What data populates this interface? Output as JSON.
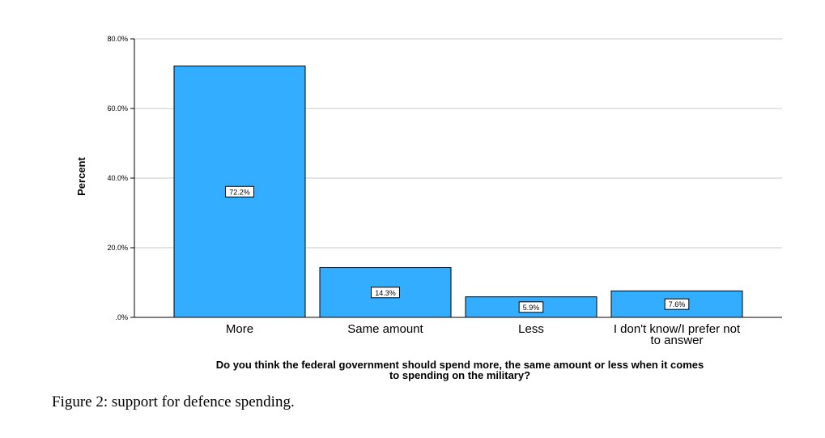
{
  "chart_data": {
    "type": "bar",
    "categories": [
      [
        "More"
      ],
      [
        "Same amount"
      ],
      [
        "Less"
      ],
      [
        "I don't know/I prefer not",
        "to answer"
      ]
    ],
    "values": [
      72.2,
      14.3,
      5.9,
      7.6
    ],
    "data_labels": [
      "72.2%",
      "14.3%",
      "5.9%",
      "7.6%"
    ],
    "ylabel": "Percent",
    "xlabel_lines": [
      "Do you think the federal government should spend more, the same amount or less when it comes",
      "to spending on the military?"
    ],
    "yticks": [
      0,
      20,
      40,
      60,
      80
    ],
    "ytick_labels": [
      ".0%",
      "20.0%",
      "40.0%",
      "60.0%",
      "80.0%"
    ],
    "ylim": [
      0,
      80
    ],
    "grid": true,
    "bar_color": "#33adff"
  },
  "caption": "Figure 2: support for defence spending."
}
